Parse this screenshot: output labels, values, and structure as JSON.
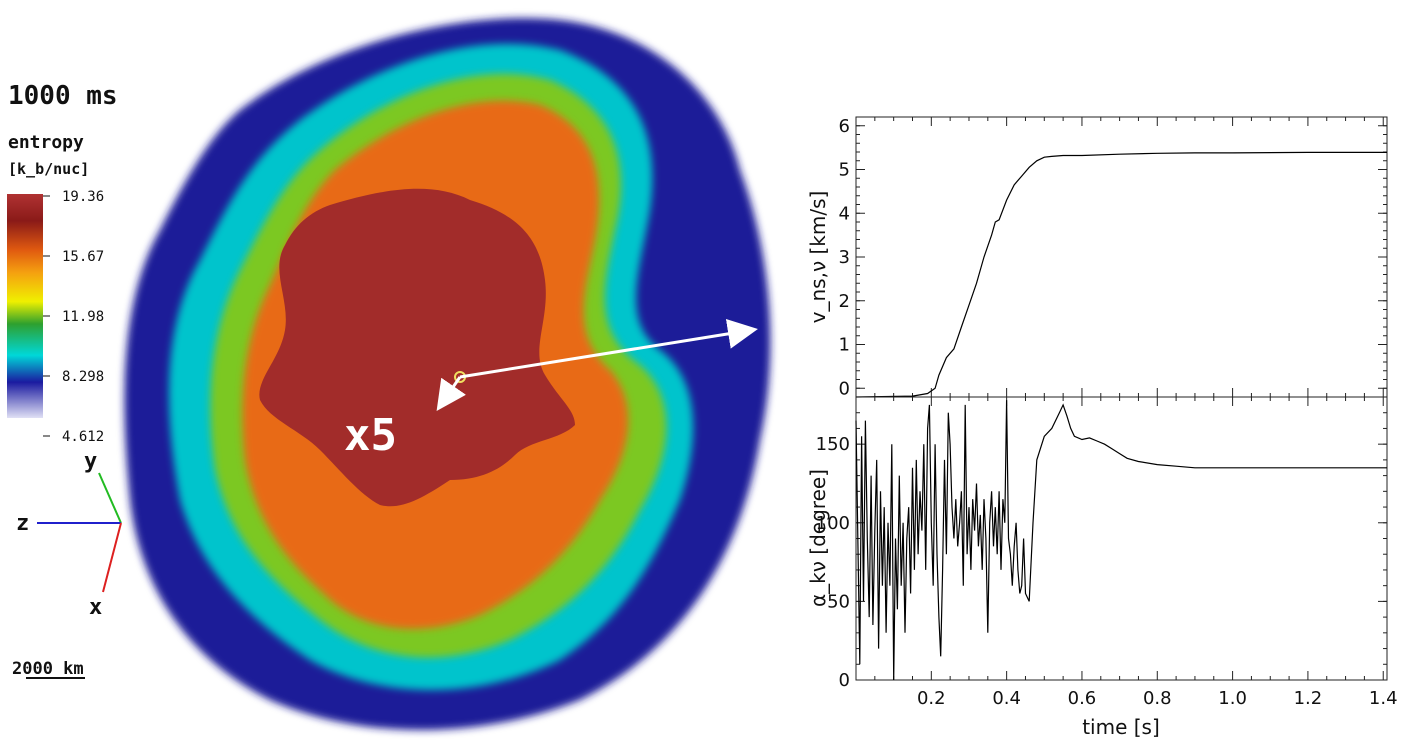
{
  "simulation": {
    "time_label": "1000 ms",
    "colorbar": {
      "title": "entropy",
      "units": "[k_b/nuc]",
      "ticks": [
        "19.36",
        "15.67",
        "11.98",
        "8.298",
        "4.612"
      ],
      "colors": [
        "#b03232",
        "#8a1a18",
        "#e05a10",
        "#f5a010",
        "#f0f000",
        "#2ea02e",
        "#00d8d8",
        "#1a1aa0",
        "#e0e0f5"
      ]
    },
    "axes": {
      "y": "y",
      "z": "z",
      "x": "x"
    },
    "scale_bar": "2000 km",
    "magnification": "x5"
  },
  "chart_data": [
    {
      "type": "line",
      "ylabel": "v_ns,ν [km/s]",
      "xlim": [
        0.0,
        1.41
      ],
      "ylim": [
        -0.2,
        6.2
      ],
      "yticks": [
        0,
        1,
        2,
        3,
        4,
        5,
        6
      ],
      "series": [
        {
          "x": [
            0.0,
            0.15,
            0.19,
            0.21,
            0.22,
            0.24,
            0.26,
            0.28,
            0.3,
            0.32,
            0.34,
            0.36,
            0.37,
            0.38,
            0.4,
            0.42,
            0.44,
            0.46,
            0.48,
            0.5,
            0.52,
            0.55,
            0.6,
            0.7,
            0.8,
            0.9,
            1.0,
            1.2,
            1.41
          ],
          "y": [
            -0.2,
            -0.18,
            -0.12,
            0.0,
            0.3,
            0.7,
            0.9,
            1.4,
            1.9,
            2.4,
            3.0,
            3.5,
            3.8,
            3.85,
            4.3,
            4.65,
            4.85,
            5.05,
            5.2,
            5.28,
            5.3,
            5.32,
            5.32,
            5.35,
            5.37,
            5.38,
            5.38,
            5.39,
            5.39
          ]
        }
      ]
    },
    {
      "type": "line",
      "ylabel": "α_kν [degree]",
      "xlabel": "time [s]",
      "xlim": [
        0.0,
        1.41
      ],
      "ylim": [
        0,
        180
      ],
      "xticks": [
        0.2,
        0.4,
        0.6,
        0.8,
        1.0,
        1.2,
        1.4
      ],
      "xticklabels": [
        "0.2",
        "0.4",
        "0.6",
        "0.8",
        "1.0",
        "1.2",
        "1.4"
      ],
      "yticks": [
        0,
        50,
        100,
        150
      ],
      "series": [
        {
          "x": [
            0.0,
            0.01,
            0.015,
            0.02,
            0.025,
            0.03,
            0.035,
            0.04,
            0.045,
            0.05,
            0.055,
            0.06,
            0.065,
            0.07,
            0.075,
            0.08,
            0.085,
            0.09,
            0.095,
            0.1,
            0.105,
            0.11,
            0.115,
            0.12,
            0.125,
            0.13,
            0.135,
            0.14,
            0.145,
            0.15,
            0.155,
            0.16,
            0.165,
            0.17,
            0.175,
            0.18,
            0.185,
            0.19,
            0.195,
            0.2,
            0.205,
            0.21,
            0.215,
            0.22,
            0.225,
            0.23,
            0.235,
            0.24,
            0.245,
            0.25,
            0.255,
            0.26,
            0.265,
            0.27,
            0.275,
            0.28,
            0.285,
            0.29,
            0.295,
            0.3,
            0.305,
            0.31,
            0.315,
            0.32,
            0.325,
            0.33,
            0.335,
            0.34,
            0.345,
            0.35,
            0.355,
            0.36,
            0.365,
            0.37,
            0.375,
            0.38,
            0.385,
            0.39,
            0.395,
            0.4,
            0.405,
            0.41,
            0.415,
            0.42,
            0.425,
            0.43,
            0.435,
            0.44,
            0.445,
            0.45,
            0.46,
            0.47,
            0.48,
            0.5,
            0.52,
            0.54,
            0.55,
            0.56,
            0.57,
            0.58,
            0.6,
            0.62,
            0.64,
            0.66,
            0.68,
            0.7,
            0.72,
            0.75,
            0.8,
            0.85,
            0.9,
            1.0,
            1.1,
            1.2,
            1.3,
            1.41
          ],
          "y": [
            165,
            10,
            155,
            50,
            165,
            90,
            40,
            130,
            35,
            95,
            140,
            20,
            120,
            60,
            110,
            30,
            100,
            60,
            150,
            0,
            90,
            45,
            130,
            60,
            100,
            30,
            90,
            110,
            55,
            135,
            70,
            140,
            80,
            120,
            95,
            150,
            70,
            160,
            175,
            100,
            60,
            150,
            80,
            40,
            15,
            70,
            140,
            80,
            170,
            150,
            110,
            90,
            115,
            85,
            100,
            120,
            60,
            175,
            80,
            110,
            70,
            115,
            95,
            125,
            85,
            105,
            70,
            115,
            90,
            30,
            100,
            120,
            85,
            110,
            80,
            120,
            70,
            115,
            100,
            178,
            90,
            80,
            60,
            85,
            100,
            70,
            55,
            60,
            90,
            55,
            50,
            100,
            140,
            155,
            160,
            170,
            175,
            168,
            160,
            155,
            153,
            154,
            152,
            150,
            147,
            144,
            141,
            139,
            137,
            136,
            135,
            135,
            135,
            135,
            135,
            135
          ]
        }
      ]
    }
  ]
}
